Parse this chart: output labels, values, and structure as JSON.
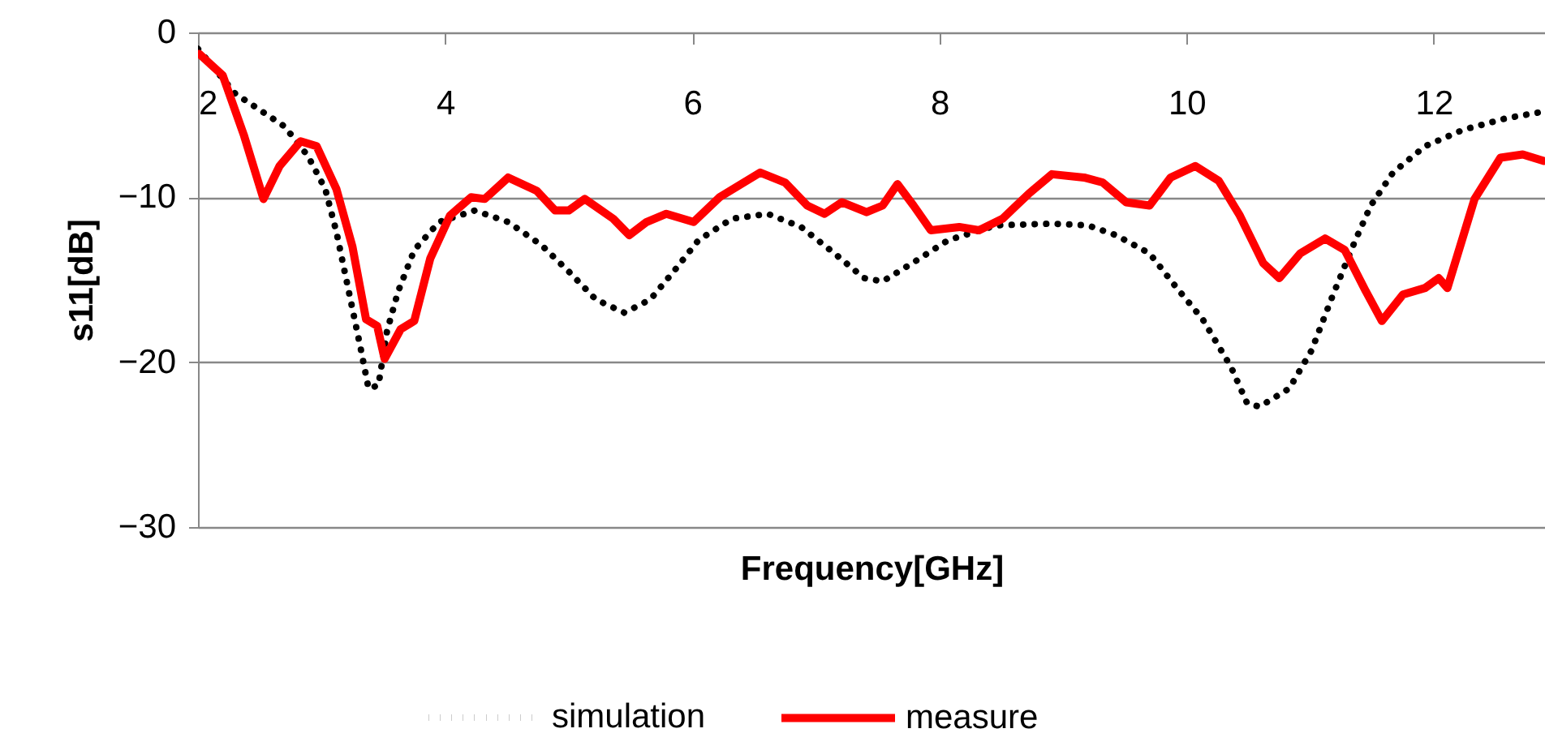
{
  "chart_data": {
    "type": "line",
    "xlabel": "Frequency[GHz]",
    "ylabel": "s11[dB]",
    "xlim": [
      2,
      12.9
    ],
    "xticks": [
      2,
      4,
      6,
      8,
      10,
      12
    ],
    "ylim": [
      -30,
      0
    ],
    "yticks": [
      -30,
      -20,
      -10,
      0
    ],
    "grid": "y",
    "legend": "bottom",
    "marker": "none",
    "series": [
      {
        "name": "simulation",
        "color": "#000000",
        "line_style": "dotted",
        "x": [
          2.0,
          2.3,
          2.7,
          2.89,
          3.03,
          3.12,
          3.22,
          3.32,
          3.38,
          3.46,
          3.53,
          3.62,
          3.75,
          3.95,
          4.24,
          4.51,
          4.78,
          5.0,
          5.22,
          5.45,
          5.66,
          5.86,
          6.05,
          6.32,
          6.61,
          6.88,
          7.15,
          7.39,
          7.54,
          7.8,
          8.07,
          8.46,
          8.91,
          9.2,
          9.43,
          9.7,
          9.91,
          10.13,
          10.36,
          10.49,
          10.59,
          10.83,
          11.01,
          11.18,
          11.36,
          11.49,
          11.67,
          11.93,
          12.24,
          12.59,
          12.89
        ],
        "values": [
          -1,
          -3.7,
          -5.7,
          -7.5,
          -9.5,
          -12.1,
          -15.7,
          -19.3,
          -21.6,
          -21.4,
          -18.1,
          -15.7,
          -13.2,
          -11.5,
          -10.8,
          -11.5,
          -12.9,
          -14.5,
          -16.2,
          -17.0,
          -16.2,
          -14.4,
          -12.6,
          -11.3,
          -11.0,
          -11.8,
          -13.4,
          -14.9,
          -15.1,
          -13.9,
          -12.6,
          -11.7,
          -11.6,
          -11.7,
          -12.3,
          -13.4,
          -15.4,
          -17.4,
          -20.3,
          -22.5,
          -22.7,
          -21.6,
          -19.3,
          -16.0,
          -12.7,
          -10.5,
          -8.5,
          -6.9,
          -5.9,
          -5.2,
          -4.8
        ]
      },
      {
        "name": "measure",
        "color": "#ff0000",
        "line_style": "solid",
        "x": [
          2.01,
          2.2,
          2.37,
          2.53,
          2.66,
          2.83,
          2.96,
          3.12,
          3.25,
          3.36,
          3.45,
          3.51,
          3.64,
          3.75,
          3.88,
          4.04,
          4.21,
          4.32,
          4.51,
          4.74,
          4.89,
          5.0,
          5.13,
          5.36,
          5.49,
          5.63,
          5.79,
          6.01,
          6.22,
          6.55,
          6.75,
          6.93,
          7.07,
          7.21,
          7.41,
          7.54,
          7.66,
          7.79,
          7.93,
          8.16,
          8.32,
          8.51,
          8.72,
          8.91,
          9.17,
          9.32,
          9.51,
          9.7,
          9.87,
          10.07,
          10.26,
          10.43,
          10.62,
          10.75,
          10.92,
          11.12,
          11.28,
          11.45,
          11.58,
          11.75,
          11.93,
          12.04,
          12.11,
          12.33,
          12.54,
          12.72,
          12.89
        ],
        "values": [
          -1.3,
          -2.6,
          -6.2,
          -10.1,
          -8.1,
          -6.6,
          -6.9,
          -9.5,
          -13.0,
          -17.4,
          -17.8,
          -19.8,
          -18.0,
          -17.5,
          -13.7,
          -11.1,
          -10.0,
          -10.1,
          -8.8,
          -9.6,
          -10.8,
          -10.8,
          -10.1,
          -11.3,
          -12.3,
          -11.5,
          -11.0,
          -11.5,
          -10.0,
          -8.5,
          -9.1,
          -10.5,
          -11.0,
          -10.3,
          -10.9,
          -10.5,
          -9.2,
          -10.5,
          -12.0,
          -11.8,
          -12.0,
          -11.3,
          -9.8,
          -8.6,
          -8.8,
          -9.1,
          -10.3,
          -10.5,
          -8.8,
          -8.1,
          -9.0,
          -11.1,
          -14.0,
          -14.9,
          -13.4,
          -12.5,
          -13.2,
          -15.7,
          -17.5,
          -15.9,
          -15.5,
          -14.9,
          -15.5,
          -10.1,
          -7.6,
          -7.4,
          -7.8
        ]
      }
    ]
  }
}
